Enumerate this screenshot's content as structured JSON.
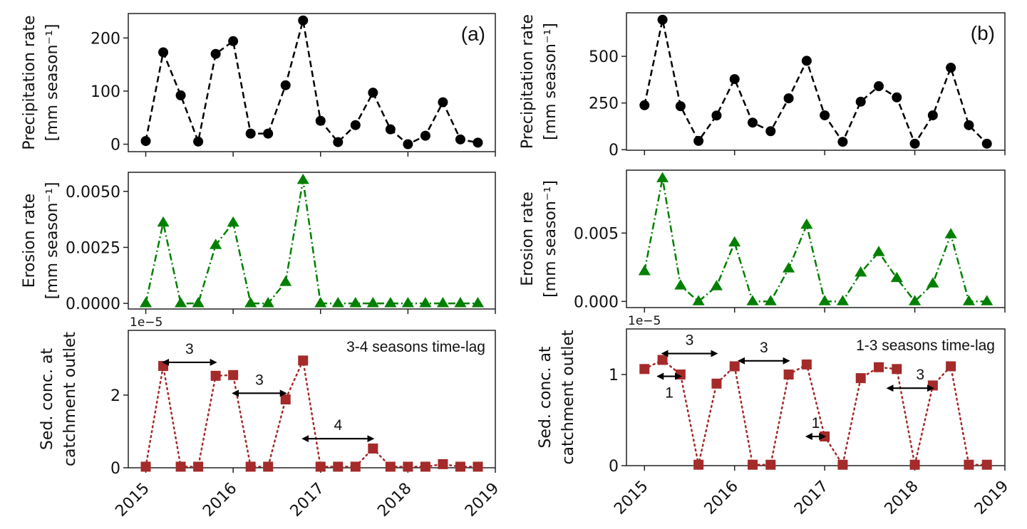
{
  "chart_data": [
    {
      "id": "a-precip",
      "type": "line",
      "panel": "(a)",
      "ylabel": [
        "Precipitation rate",
        "[mm season⁻¹]"
      ],
      "x": [
        2015.0,
        2015.2,
        2015.4,
        2015.6,
        2015.8,
        2016.0,
        2016.2,
        2016.4,
        2016.6,
        2016.8,
        2017.0,
        2017.2,
        2017.4,
        2017.6,
        2017.8,
        2018.0,
        2018.2,
        2018.4,
        2018.6,
        2018.8
      ],
      "values": [
        6,
        173,
        92,
        5,
        170,
        194,
        20,
        20,
        111,
        233,
        44,
        4,
        36,
        97,
        28,
        0,
        16,
        79,
        9,
        3
      ],
      "yticks": [
        0,
        100,
        200
      ],
      "ytick_labels": [
        "0",
        "100",
        "200"
      ],
      "xlim": [
        2014.8,
        2019
      ],
      "ylim": [
        -14,
        246
      ],
      "color": "#000000",
      "marker": "circle",
      "linestyle": "dashed"
    },
    {
      "id": "b-precip",
      "type": "line",
      "panel": "(b)",
      "ylabel": [
        "Precipitation rate",
        "[mm season⁻¹]"
      ],
      "x": [
        2015.0,
        2015.2,
        2015.4,
        2015.6,
        2015.8,
        2016.0,
        2016.2,
        2016.4,
        2016.6,
        2016.8,
        2017.0,
        2017.2,
        2017.4,
        2017.6,
        2017.8,
        2018.0,
        2018.2,
        2018.4,
        2018.6,
        2018.8
      ],
      "values": [
        238,
        696,
        233,
        47,
        183,
        378,
        145,
        99,
        275,
        476,
        184,
        42,
        257,
        340,
        280,
        32,
        184,
        439,
        131,
        32
      ],
      "yticks": [
        0,
        250,
        500
      ],
      "ytick_labels": [
        "0",
        "250",
        "500"
      ],
      "xlim": [
        2014.8,
        2019
      ],
      "ylim": [
        -3,
        733
      ],
      "color": "#000000",
      "marker": "circle",
      "linestyle": "dashed"
    },
    {
      "id": "a-erosion",
      "type": "line",
      "ylabel": [
        "Erosion rate",
        "[mm season⁻¹]"
      ],
      "x": [
        2015.0,
        2015.2,
        2015.4,
        2015.6,
        2015.8,
        2016.0,
        2016.2,
        2016.4,
        2016.6,
        2016.8,
        2017.0,
        2017.2,
        2017.4,
        2017.6,
        2017.8,
        2018.0,
        2018.2,
        2018.4,
        2018.6,
        2018.8
      ],
      "values": [
        0,
        0.0036,
        0,
        0,
        0.0026,
        0.0036,
        0,
        0,
        0.00095,
        0.0055,
        0,
        0,
        0,
        0,
        0,
        0,
        0,
        0,
        0,
        0
      ],
      "yticks": [
        0,
        0.0025,
        0.005
      ],
      "ytick_labels": [
        "0.0000",
        "0.0025",
        "0.0050"
      ],
      "xlim": [
        2014.8,
        2019
      ],
      "ylim": [
        -0.00025,
        0.00585
      ],
      "color": "#008000",
      "marker": "triangle",
      "linestyle": "dashdot"
    },
    {
      "id": "b-erosion",
      "type": "line",
      "ylabel": [
        "Erosion rate",
        "[mm season⁻¹]"
      ],
      "x": [
        2015.0,
        2015.2,
        2015.4,
        2015.6,
        2015.8,
        2016.0,
        2016.2,
        2016.4,
        2016.6,
        2016.8,
        2017.0,
        2017.2,
        2017.4,
        2017.6,
        2017.8,
        2018.0,
        2018.2,
        2018.4,
        2018.6,
        2018.8
      ],
      "values": [
        0.0022,
        0.009,
        0.00115,
        0,
        0.0011,
        0.0043,
        0,
        0,
        0.0024,
        0.0056,
        0,
        0,
        0.0021,
        0.0036,
        0.0017,
        0,
        0.0013,
        0.0049,
        0,
        0
      ],
      "yticks": [
        0,
        0.005
      ],
      "ytick_labels": [
        "0.000",
        "0.005"
      ],
      "xlim": [
        2014.8,
        2019
      ],
      "ylim": [
        -0.00045,
        0.0096
      ],
      "color": "#008000",
      "marker": "triangle",
      "linestyle": "dashdot"
    },
    {
      "id": "a-sed",
      "type": "line",
      "ylabel": [
        "Sed. conc. at",
        "catchment outlet"
      ],
      "offset_text": "1e−5",
      "x": [
        2015.0,
        2015.2,
        2015.4,
        2015.6,
        2015.8,
        2016.0,
        2016.2,
        2016.4,
        2016.6,
        2016.8,
        2017.0,
        2017.2,
        2017.4,
        2017.6,
        2017.8,
        2018.0,
        2018.2,
        2018.4,
        2018.6,
        2018.8
      ],
      "values": [
        0.03,
        2.8,
        0.03,
        0.03,
        2.53,
        2.55,
        0.03,
        0.03,
        1.88,
        2.95,
        0.03,
        0.03,
        0.03,
        0.53,
        0.03,
        0.03,
        0.03,
        0.1,
        0.03,
        0.03
      ],
      "value_scale": "1e-5",
      "yticks": [
        0,
        2
      ],
      "ytick_labels": [
        "0",
        "2"
      ],
      "xticks": [
        2015,
        2016,
        2017,
        2018,
        2019
      ],
      "xtick_labels": [
        "2015",
        "2016",
        "2017",
        "2018",
        "2019"
      ],
      "xlim": [
        2014.8,
        2019
      ],
      "ylim": [
        0,
        3.78
      ],
      "color": "#A52A2A",
      "marker": "square",
      "linestyle": "dotted",
      "annotation": "3-4 seasons time-lag",
      "arrows": [
        {
          "x0": 2015.2,
          "x1": 2015.8,
          "y": 2.9,
          "label": "3"
        },
        {
          "x0": 2016.0,
          "x1": 2016.6,
          "y": 2.05,
          "label": "3"
        },
        {
          "x0": 2016.8,
          "x1": 2017.6,
          "y": 0.8,
          "label": "4"
        }
      ]
    },
    {
      "id": "b-sed",
      "type": "line",
      "ylabel": [
        "Sed. conc. at",
        "catchment outlet"
      ],
      "offset_text": "1e−5",
      "x": [
        2015.0,
        2015.2,
        2015.4,
        2015.6,
        2015.8,
        2016.0,
        2016.2,
        2016.4,
        2016.6,
        2016.8,
        2017.0,
        2017.2,
        2017.4,
        2017.6,
        2017.8,
        2018.0,
        2018.2,
        2018.4,
        2018.6,
        2018.8
      ],
      "values": [
        1.06,
        1.16,
        1.0,
        0.01,
        0.9,
        1.09,
        0.01,
        0.01,
        1.0,
        1.11,
        0.32,
        0.01,
        0.96,
        1.08,
        1.06,
        0.01,
        0.88,
        1.09,
        0.01,
        0.01
      ],
      "value_scale": "1e-5",
      "yticks": [
        0,
        1
      ],
      "ytick_labels": [
        "0",
        "1"
      ],
      "xticks": [
        2015,
        2016,
        2017,
        2018,
        2019
      ],
      "xtick_labels": [
        "2015",
        "2016",
        "2017",
        "2018",
        "2019"
      ],
      "xlim": [
        2014.8,
        2019
      ],
      "ylim": [
        0,
        1.5
      ],
      "color": "#A52A2A",
      "marker": "square",
      "linestyle": "dotted",
      "annotation": "1-3 seasons time-lag",
      "arrows": [
        {
          "x0": 2015.2,
          "x1": 2015.8,
          "y": 1.23,
          "label": "3",
          "label_pos": "above"
        },
        {
          "x0": 2015.15,
          "x1": 2015.4,
          "y": 0.98,
          "label": "1",
          "label_pos": "below"
        },
        {
          "x0": 2016.05,
          "x1": 2016.6,
          "y": 1.15,
          "label": "3",
          "label_pos": "above"
        },
        {
          "x0": 2016.8,
          "x1": 2017.0,
          "y": 0.32,
          "label": "1",
          "label_pos": "above"
        },
        {
          "x0": 2017.7,
          "x1": 2018.2,
          "y": 0.85,
          "label": "3",
          "label_pos": "above-right"
        }
      ]
    }
  ]
}
